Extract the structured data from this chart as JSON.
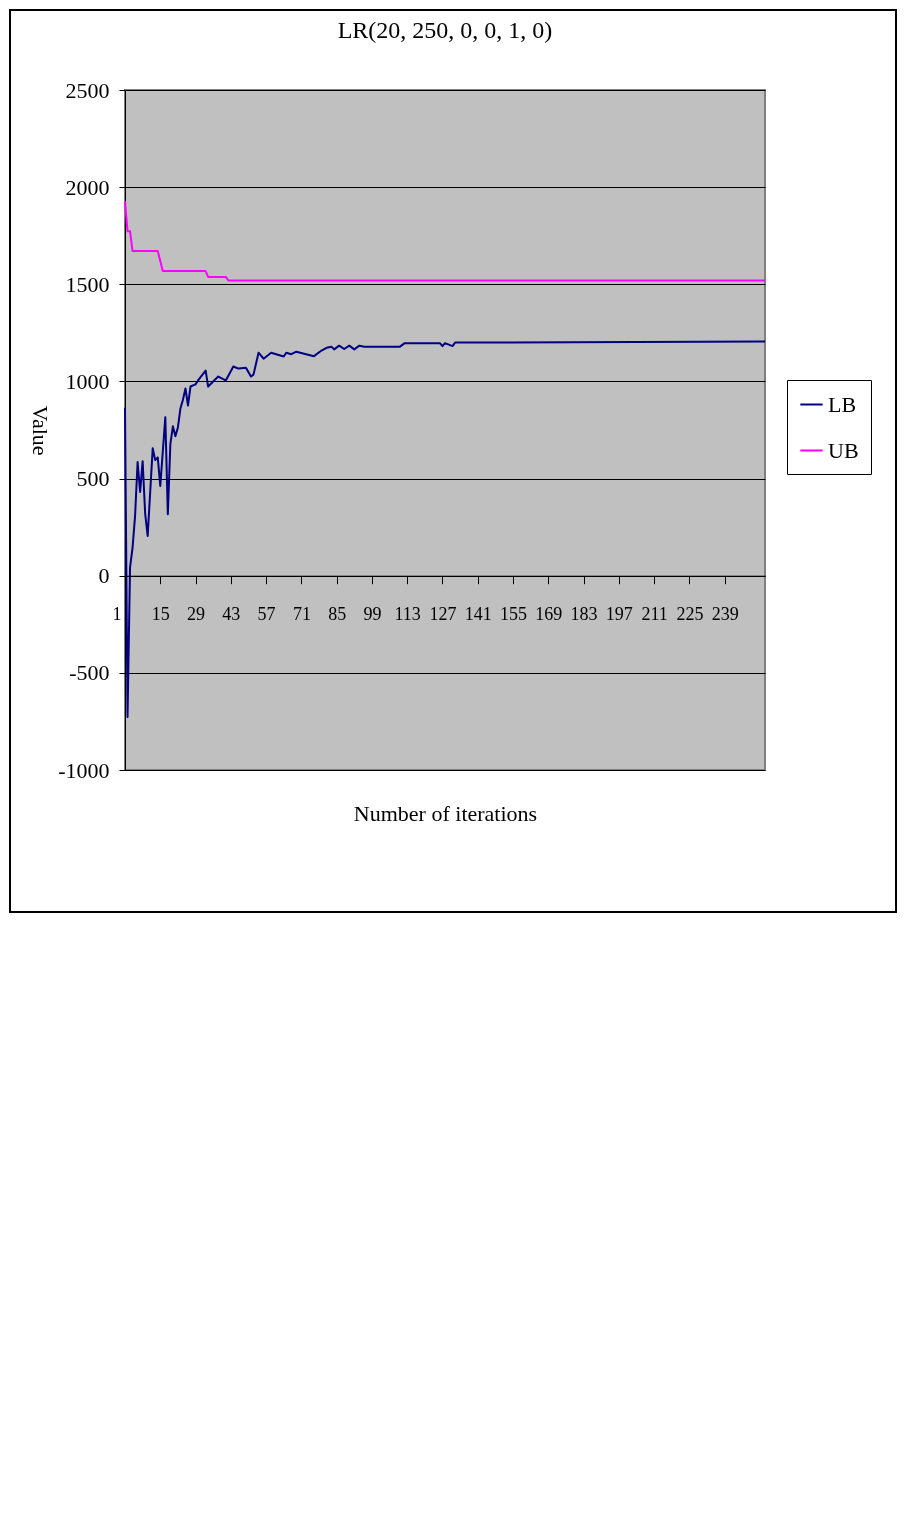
{
  "chart_data": {
    "type": "line",
    "title": "LR(20, 250, 0, 0, 1, 0)",
    "xlabel": "Number of iterations",
    "ylabel": "Value",
    "xlim": [
      1,
      255
    ],
    "xticks": [
      1,
      15,
      29,
      43,
      57,
      71,
      85,
      99,
      113,
      127,
      141,
      155,
      169,
      183,
      197,
      211,
      225,
      239
    ],
    "ylim": [
      -1000,
      2500
    ],
    "yticks": [
      -1000,
      -500,
      0,
      500,
      1000,
      1500,
      2000,
      2500
    ],
    "grid": "y",
    "legend": "right",
    "series": [
      {
        "name": "LB",
        "color": "#000080",
        "x": [
          1,
          2,
          3,
          4,
          5,
          6,
          7,
          8,
          9,
          10,
          12,
          13,
          14,
          15,
          17,
          18,
          19,
          20,
          21,
          22,
          23,
          24,
          25,
          26,
          27,
          29,
          30,
          33,
          34,
          38,
          41,
          44,
          46,
          49,
          51,
          52,
          54,
          56,
          59,
          64,
          65,
          67,
          69,
          76,
          79,
          81,
          83,
          84,
          86,
          88,
          90,
          92,
          94,
          96,
          110,
          112,
          126,
          127,
          128,
          131,
          132,
          255
        ],
        "values": [
          865,
          -727,
          42,
          144,
          308,
          585,
          431,
          589,
          320,
          205,
          656,
          595,
          609,
          462,
          816,
          316,
          677,
          769,
          718,
          763,
          861,
          906,
          964,
          876,
          974,
          985,
          1005,
          1056,
          974,
          1025,
          1005,
          1077,
          1066,
          1071,
          1025,
          1035,
          1148,
          1117,
          1148,
          1128,
          1148,
          1140,
          1153,
          1130,
          1159,
          1173,
          1178,
          1165,
          1184,
          1167,
          1184,
          1165,
          1184,
          1178,
          1178,
          1197,
          1197,
          1182,
          1197,
          1182,
          1200,
          1205
        ]
      },
      {
        "name": "UB",
        "color": "#ff00ff",
        "x": [
          1,
          2,
          3,
          4,
          14,
          16,
          33,
          34,
          41,
          42,
          255
        ],
        "values": [
          1927,
          1773,
          1773,
          1671,
          1671,
          1568,
          1568,
          1538,
          1538,
          1520,
          1520
        ]
      }
    ]
  }
}
